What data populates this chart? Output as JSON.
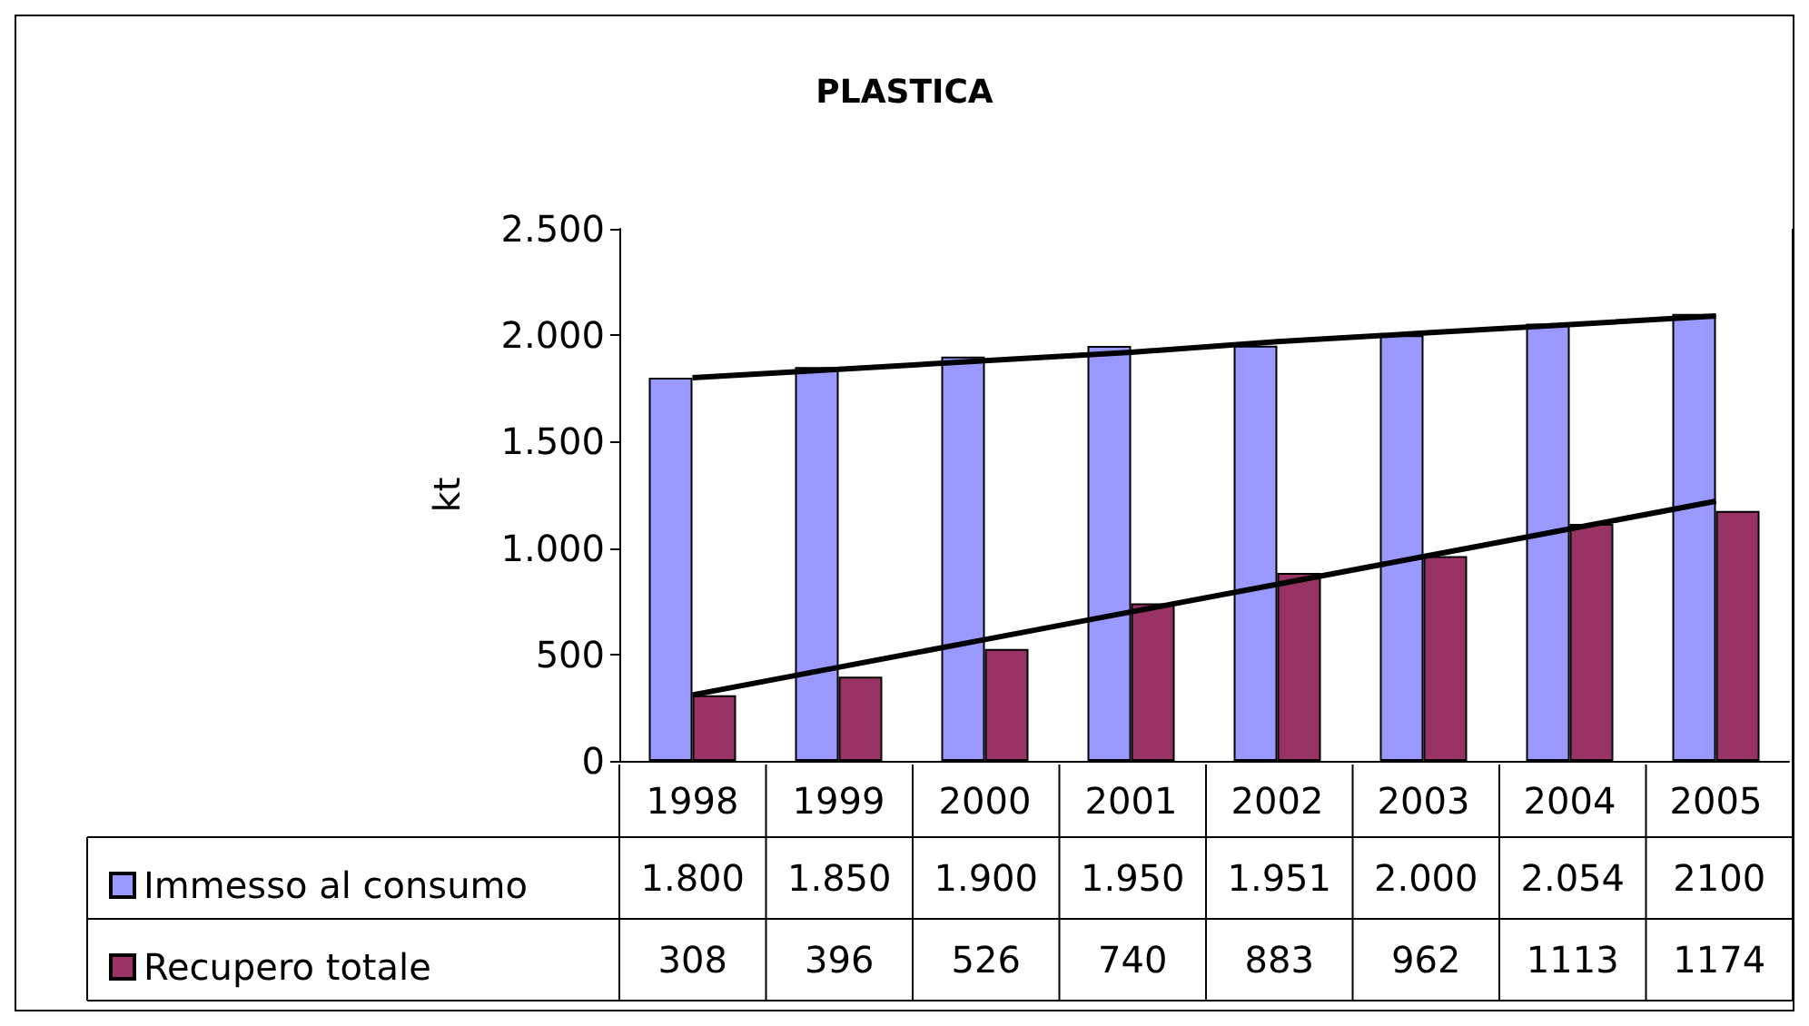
{
  "chart_data": {
    "type": "bar",
    "title": "PLASTICA",
    "ylabel": "kt",
    "categories": [
      "1998",
      "1999",
      "2000",
      "2001",
      "2002",
      "2003",
      "2004",
      "2005"
    ],
    "series": [
      {
        "name": "Immesso al consumo",
        "color": "#9999ff",
        "values": [
          1800,
          1850,
          1900,
          1950,
          1951,
          2000,
          2054,
          2100
        ],
        "value_labels": [
          "1.800",
          "1.850",
          "1.900",
          "1.950",
          "1.951",
          "2.000",
          "2.054",
          "2100"
        ]
      },
      {
        "name": "Recupero totale",
        "color": "#993366",
        "values": [
          308,
          396,
          526,
          740,
          883,
          962,
          1113,
          1174
        ],
        "value_labels": [
          "308",
          "396",
          "526",
          "740",
          "883",
          "962",
          "1113",
          "1174"
        ]
      },
      {
        "type": "line",
        "color": "#000000",
        "values": [
          1800,
          1840,
          1880,
          1920,
          1970,
          2010,
          2050,
          2090
        ]
      },
      {
        "type": "line",
        "color": "#000000",
        "values": [
          310,
          440,
          570,
          700,
          830,
          960,
          1090,
          1220
        ]
      }
    ],
    "ylim": [
      0,
      2500
    ],
    "yticks": [
      0,
      {
        "value": 500,
        "label": "500"
      },
      {
        "value": 1000,
        "label": "1.000"
      },
      {
        "value": 1500,
        "label": "1.500"
      },
      {
        "value": 2000,
        "label": "2.000"
      },
      {
        "value": 2500,
        "label": "2.500"
      }
    ],
    "grid": false,
    "legend": "bottom left",
    "marker": "none",
    "line_style": "solid"
  }
}
